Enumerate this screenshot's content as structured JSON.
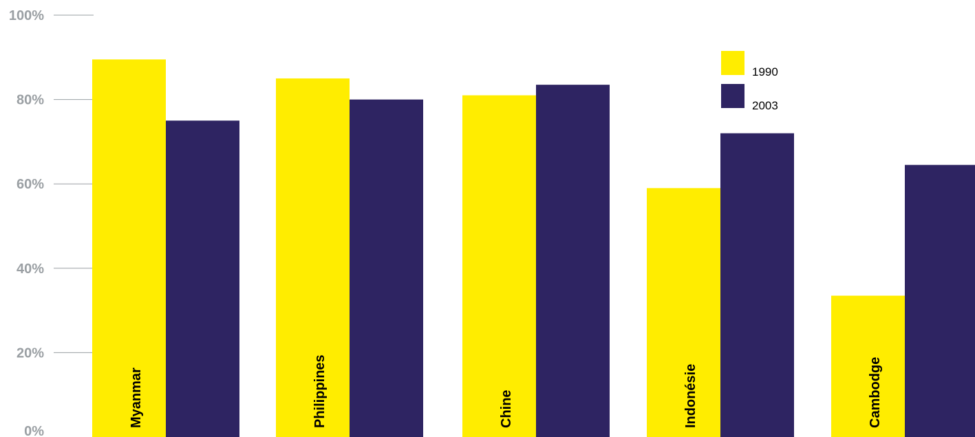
{
  "colors": {
    "series_1990": "#ffed00",
    "series_2003": "#2e2462",
    "gridline": "#9a9fa3",
    "tick_text": "#9a9fa3"
  },
  "chart_data": {
    "type": "bar",
    "title": "",
    "xlabel": "",
    "ylabel": "",
    "ylim": [
      0,
      100
    ],
    "ytick_values": [
      0,
      20,
      40,
      60,
      80,
      100
    ],
    "ytick_labels": [
      "0%",
      "20%",
      "40%",
      "60%",
      "80%",
      "100%"
    ],
    "categories": [
      "Myanmar",
      "Philippines",
      "Chine",
      "Indonésie",
      "Cambodge"
    ],
    "series": [
      {
        "name": "1990",
        "values": [
          89.5,
          85,
          81,
          59,
          33.5
        ]
      },
      {
        "name": "2003",
        "values": [
          75,
          80,
          83.5,
          72,
          64.5
        ]
      }
    ],
    "legend": {
      "position": "top-right",
      "entries": [
        "1990",
        "2003"
      ]
    },
    "grid": false
  }
}
